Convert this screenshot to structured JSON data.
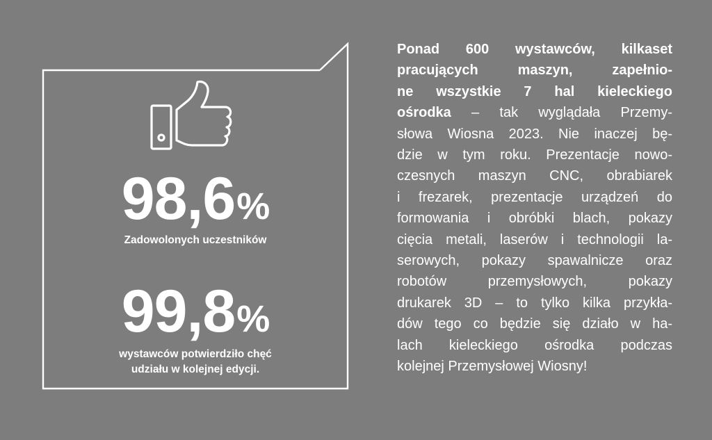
{
  "stats": [
    {
      "number": "98,6",
      "percent": "%",
      "label_lines": [
        "Zadowolonych uczestników"
      ]
    },
    {
      "number": "99,8",
      "percent": "%",
      "label_lines": [
        "wystawców potwierdziło chęć",
        "udziału w kolejnej edycji."
      ]
    }
  ],
  "paragraph": {
    "lines": [
      {
        "bold": "Ponad 600 wystawców, kilkaset",
        "rest": ""
      },
      {
        "bold": "pracujących maszyn, zapełnio-",
        "rest": ""
      },
      {
        "bold": "ne wszystkie  7 hal kieleckiego",
        "rest": ""
      },
      {
        "bold": "ośrodka",
        "rest": " – tak wyglądała Przemy-"
      },
      {
        "bold": "",
        "rest": "słowa Wiosna 2023. Nie inaczej bę-"
      },
      {
        "bold": "",
        "rest": "dzie  w tym roku. Prezentacje nowo-"
      },
      {
        "bold": "",
        "rest": "czesnych maszyn CNC, obrabiarek"
      },
      {
        "bold": "",
        "rest": "i frezarek, prezentacje urządzeń do"
      },
      {
        "bold": "",
        "rest": "formowania i obróbki blach, pokazy"
      },
      {
        "bold": "",
        "rest": "cięcia metali, laserów i technologii la-"
      },
      {
        "bold": "",
        "rest": "serowych, pokazy spawalnicze oraz"
      },
      {
        "bold": "",
        "rest": "robotów przemysłowych, pokazy"
      },
      {
        "bold": "",
        "rest": "drukarek 3D – to tylko kilka przykła-"
      },
      {
        "bold": "",
        "rest": "dów tego co będzie się działo w ha-"
      },
      {
        "bold": "",
        "rest": "lach kieleckiego ośrodka podczas"
      },
      {
        "bold": "",
        "rest": "kolejnej Przemysłowej Wiosny!"
      }
    ]
  },
  "icons": {
    "thumb": "thumbs-up-icon"
  },
  "colors": {
    "background": "#7d7d7d",
    "foreground": "#ffffff"
  }
}
